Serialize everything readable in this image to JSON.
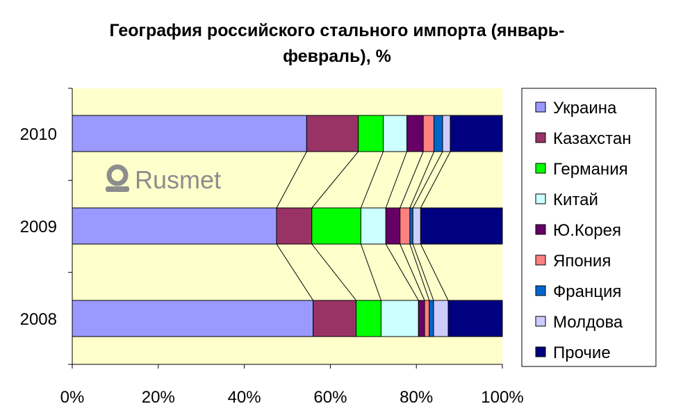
{
  "chart_data": {
    "type": "bar",
    "orientation": "horizontal",
    "stacked": "percent",
    "title": "География российского стального импорта (январь-февраль), %",
    "title_lines": [
      "География российского стального импорта (январь-",
      "февраль), %"
    ],
    "categories": [
      "2010",
      "2009",
      "2008"
    ],
    "xlim": [
      0,
      100
    ],
    "x_ticks": [
      "0%",
      "20%",
      "40%",
      "60%",
      "80%",
      "100%"
    ],
    "legend_position": "right",
    "connector_lines": true,
    "plot_background": "#ffffcc",
    "series": [
      {
        "name": "Украина",
        "color": "#9999ff",
        "values": [
          54.5,
          47.5,
          56.0
        ]
      },
      {
        "name": "Казахстан",
        "color": "#993366",
        "values": [
          12.0,
          8.2,
          10.0
        ]
      },
      {
        "name": "Германия",
        "color": "#00ff00",
        "values": [
          5.8,
          11.4,
          5.8
        ]
      },
      {
        "name": "Китай",
        "color": "#ccffff",
        "values": [
          5.5,
          5.8,
          8.7
        ]
      },
      {
        "name": "Ю.Корея",
        "color": "#660066",
        "values": [
          3.8,
          3.3,
          1.4
        ]
      },
      {
        "name": "Япония",
        "color": "#ff8080",
        "values": [
          2.5,
          2.3,
          1.1
        ]
      },
      {
        "name": "Франция",
        "color": "#0066cc",
        "values": [
          2.0,
          0.7,
          1.0
        ]
      },
      {
        "name": "Молдова",
        "color": "#ccccff",
        "values": [
          1.8,
          1.8,
          3.4
        ]
      },
      {
        "name": "Прочие",
        "color": "#000080",
        "values": [
          12.1,
          19.0,
          12.6
        ]
      }
    ]
  },
  "watermark": {
    "text": "Rusmet",
    "icon": "rusmet-logo-icon"
  }
}
